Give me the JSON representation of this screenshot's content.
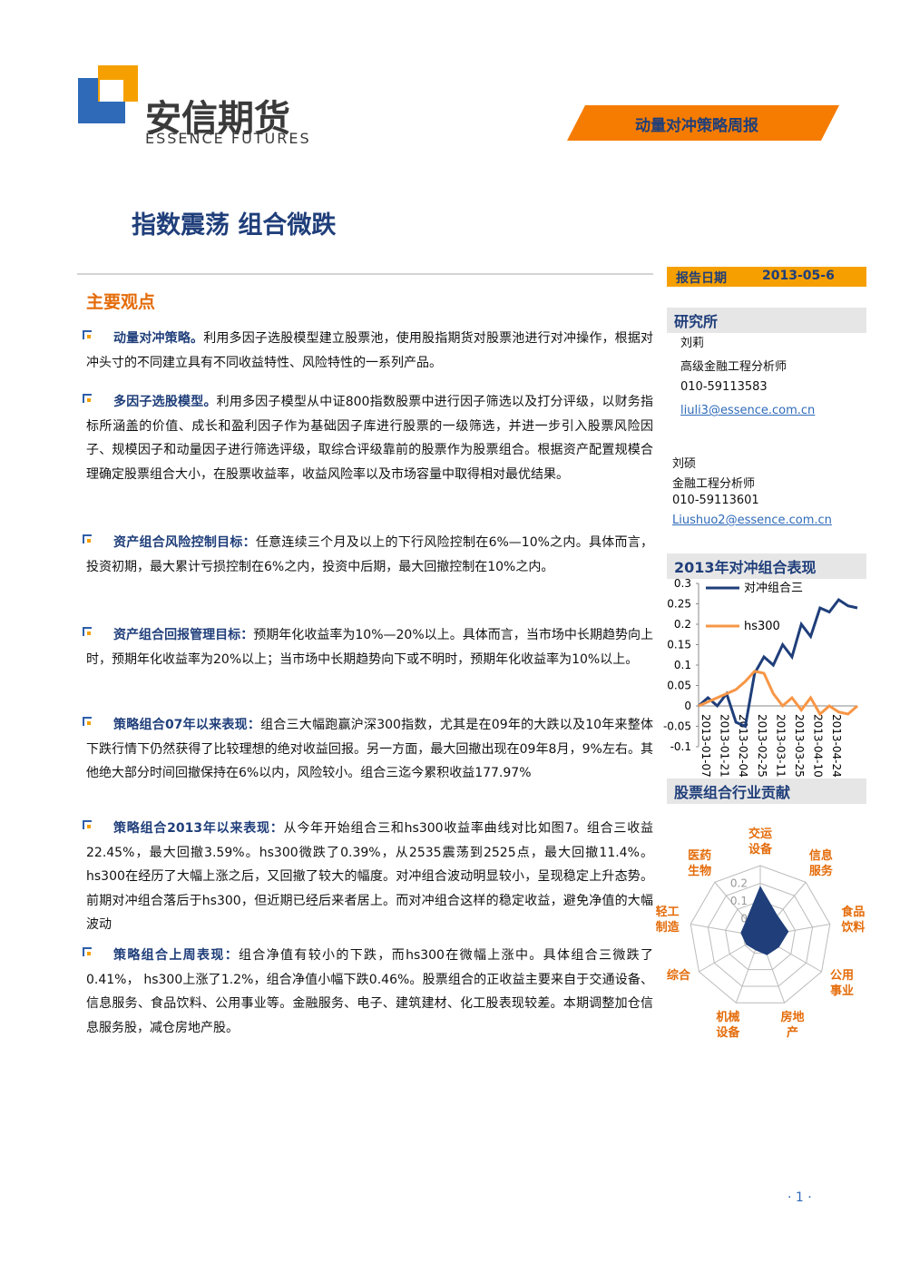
{
  "header": {
    "brand": "安信期货",
    "brand_en": "ESSENCE FUTURES",
    "report_type": "动量对冲策略周报"
  },
  "title": "指数震荡 组合微跌",
  "date_label": "报告日期",
  "date": "2013-05-6",
  "section_title": "主要观点",
  "paragraphs": [
    {
      "lead": "动量对冲策略。",
      "body": "利用多因子选股模型建立股票池，使用股指期货对股票池进行对冲操作，根据对冲头寸的不同建立具有不同收益特性、风险特性的一系列产品。"
    },
    {
      "lead": "多因子选股模型。",
      "body": "利用多因子模型从中证800指数股票中进行因子筛选以及打分评级，以财务指标所涵盖的价值、成长和盈利因子作为基础因子库进行股票的一级筛选，并进一步引入股票风险因子、规模因子和动量因子进行筛选评级，取综合评级靠前的股票作为股票组合。根据资产配置规模合理确定股票组合大小，在股票收益率，收益风险率以及市场容量中取得相对最优结果。"
    },
    {
      "lead": "资产组合风险控制目标：",
      "body": "任意连续三个月及以上的下行风险控制在6%—10%之内。具体而言，投资初期，最大累计亏损控制在6%之内，投资中后期，最大回撤控制在10%之内。"
    },
    {
      "lead": "资产组合回报管理目标：",
      "body": "预期年化收益率为10%—20%以上。具体而言，当市场中长期趋势向上时，预期年化收益率为20%以上；当市场中长期趋势向下或不明时，预期年化收益率为10%以上。"
    },
    {
      "lead": "策略组合07年以来表现：",
      "body": "组合三大幅跑赢沪深300指数，尤其是在09年的大跌以及10年来整体下跌行情下仍然获得了比较理想的绝对收益回报。另一方面，最大回撤出现在09年8月，9%左右。其他绝大部分时间回撤保持在6%以内，风险较小。组合三迄今累积收益177.97%"
    },
    {
      "lead": "策略组合2013年以来表现：",
      "body": "从今年开始组合三和hs300收益率曲线对比如图7。组合三收益22.45%，最大回撤3.59%。hs300微跌了0.39%，从2535震荡到2525点，最大回撤11.4%。hs300在经历了大幅上涨之后，又回撤了较大的幅度。对冲组合波动明显较小，呈现稳定上升态势。前期对冲组合落后于hs300，但近期已经后来者居上。而对冲组合这样的稳定收益，避免净值的大幅波动"
    },
    {
      "lead": "策略组合上周表现：",
      "body": "组合净值有较小的下跌，而hs300在微幅上涨中。具体组合三微跌了0.41%， hs300上涨了1.2%，组合净值小幅下跌0.46%。股票组合的正收益主要来自于交通设备、信息服务、食品饮料、公用事业等。金融服务、电子、建筑建材、化工股表现较差。本期调整加仓信息服务股，减仓房地产股。"
    }
  ],
  "institute": "研究所",
  "analysts": [
    {
      "name": "刘莉",
      "title": "高级金融工程分析师",
      "phone": "010-59113583",
      "email": "liuli3@essence.com.cn"
    },
    {
      "name": "刘硕",
      "title": "金融工程分析师",
      "phone": "010-59113601",
      "email": "Liushuo2@essence.com.cn"
    }
  ],
  "chart_data": [
    {
      "type": "line",
      "title": "2013年对冲组合表现",
      "categories": [
        "2013-01-07",
        null,
        "2013-01-21",
        null,
        "2013-02-04",
        null,
        "2013-02-25",
        null,
        "2013-03-11",
        null,
        "2013-03-25",
        null,
        "2013-04-10",
        null,
        "2013-04-24",
        null,
        null,
        null
      ],
      "series": [
        {
          "name": "对冲组合三",
          "color": "#1f3e7a",
          "values": [
            0,
            0.02,
            0,
            0.03,
            -0.04,
            -0.05,
            0.08,
            0.12,
            0.1,
            0.15,
            0.12,
            0.2,
            0.17,
            0.24,
            0.23,
            0.26,
            0.245,
            0.24
          ]
        },
        {
          "name": "hs300",
          "color": "#f79646",
          "values": [
            0,
            0.01,
            0.02,
            0.03,
            0.04,
            0.06,
            0.085,
            0.08,
            0.03,
            0,
            0.02,
            -0.01,
            0.02,
            -0.02,
            0,
            -0.015,
            -0.02,
            0
          ]
        }
      ],
      "ylim": [
        -0.1,
        0.3
      ],
      "yticks": [
        -0.1,
        -0.05,
        0,
        0.05,
        0.1,
        0.15,
        0.2,
        0.25,
        0.3
      ]
    },
    {
      "type": "radar",
      "title": "股票组合行业贡献",
      "categories": [
        "交运设备",
        "信息服务",
        "食品饮料",
        "公用事业",
        "房地产",
        "机械设备",
        "综合",
        "轻工制造",
        "医药生物"
      ],
      "values": [
        0.18,
        0.05,
        0.06,
        0.02,
        0.01,
        -0.02,
        -0.01,
        0.01,
        0.02
      ],
      "color": "#1f3e7a",
      "rlim": [
        -0.1,
        0.3
      ],
      "rticks": [
        0,
        0.1,
        0.2
      ]
    }
  ],
  "page_number": "· 1 ·"
}
